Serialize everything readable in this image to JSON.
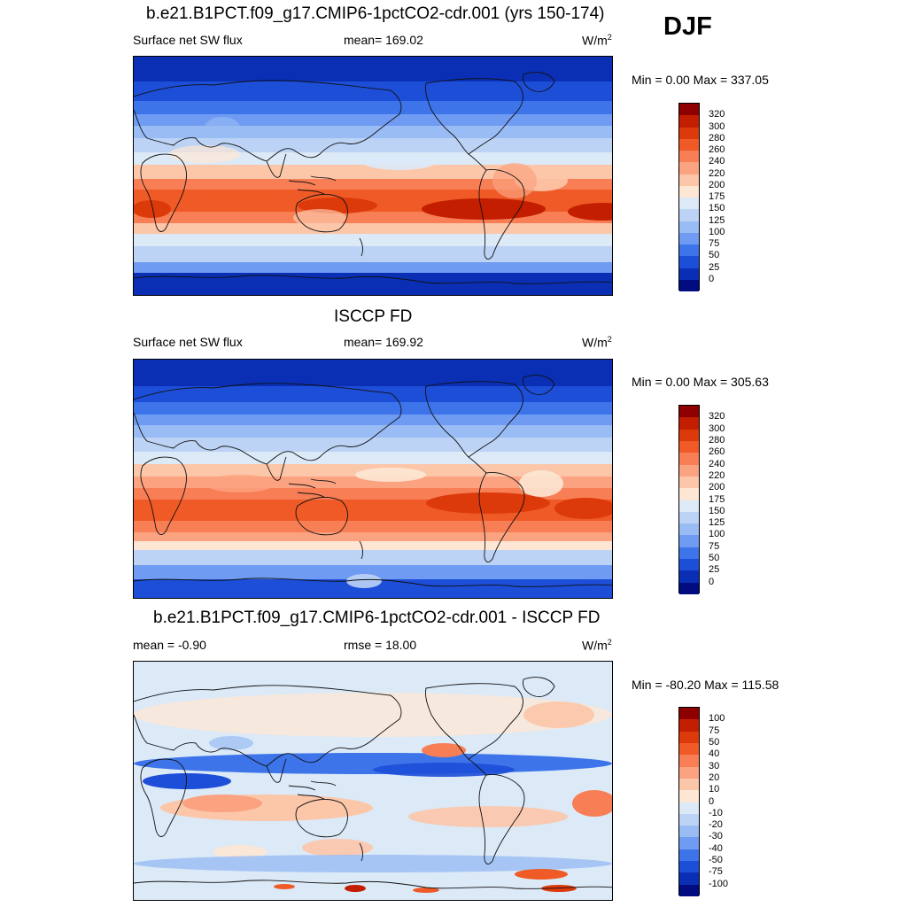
{
  "season": "DJF",
  "panels": [
    {
      "title": "b.e21.B1PCT.f09_g17.CMIP6-1pctCO2-cdr.001 (yrs 150-174)",
      "left_label": "Surface net SW flux",
      "mid_label": "mean= 169.02",
      "units_base": "W/m",
      "units_exp": "2",
      "minmax": "Min =   0.00 Max = 337.05",
      "levels": [
        "320",
        "300",
        "280",
        "260",
        "240",
        "220",
        "200",
        "175",
        "150",
        "125",
        "100",
        "75",
        "50",
        "25",
        "0"
      ],
      "colors": [
        "#8e0000",
        "#c41e00",
        "#dc3a0a",
        "#ef5a26",
        "#f77e55",
        "#fba280",
        "#fcc6a9",
        "#fde7d4",
        "#dce9f7",
        "#bcd3f5",
        "#99bcf4",
        "#6f9cf2",
        "#3d74ea",
        "#1d4ed8",
        "#0a2fb5",
        "#000c80"
      ],
      "map_type": "model"
    },
    {
      "title": "ISCCP FD",
      "left_label": "Surface net SW flux",
      "mid_label": "mean= 169.92",
      "units_base": "W/m",
      "units_exp": "2",
      "minmax": "Min =   0.00 Max = 305.63",
      "levels": [
        "320",
        "300",
        "280",
        "260",
        "240",
        "220",
        "200",
        "175",
        "150",
        "125",
        "100",
        "75",
        "50",
        "25",
        "0"
      ],
      "colors": [
        "#8e0000",
        "#c41e00",
        "#dc3a0a",
        "#ef5a26",
        "#f77e55",
        "#fba280",
        "#fcc6a9",
        "#fde7d4",
        "#dce9f7",
        "#bcd3f5",
        "#99bcf4",
        "#6f9cf2",
        "#3d74ea",
        "#1d4ed8",
        "#0a2fb5",
        "#000c80"
      ],
      "map_type": "obs"
    },
    {
      "title": "b.e21.B1PCT.f09_g17.CMIP6-1pctCO2-cdr.001 - ISCCP FD",
      "left_label": "mean =  -0.90",
      "mid_label": "rmse =  18.00",
      "units_base": "W/m",
      "units_exp": "2",
      "minmax": "Min = -80.20 Max = 115.58",
      "levels": [
        "100",
        "75",
        "50",
        "40",
        "30",
        "20",
        "10",
        "0",
        "-10",
        "-20",
        "-30",
        "-40",
        "-50",
        "-75",
        "-100"
      ],
      "colors": [
        "#8e0000",
        "#c41e00",
        "#dc3a0a",
        "#ef5a26",
        "#f77e55",
        "#fba280",
        "#fcc6a9",
        "#fde7d4",
        "#dce9f7",
        "#bcd3f5",
        "#99bcf4",
        "#6f9cf2",
        "#3d74ea",
        "#1d4ed8",
        "#0a2fb5",
        "#000c80"
      ],
      "map_type": "diff"
    }
  ]
}
